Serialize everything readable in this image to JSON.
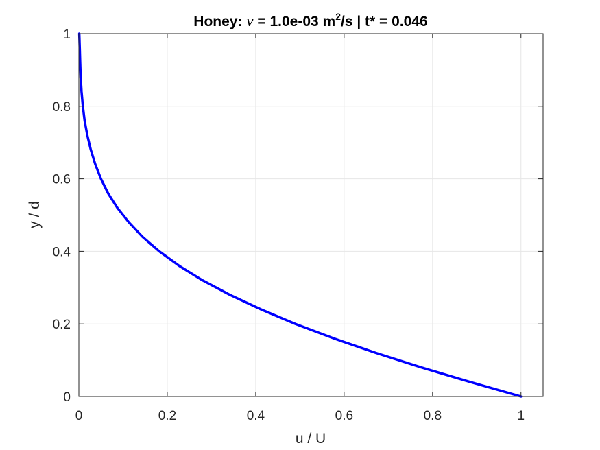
{
  "chart_data": {
    "type": "line",
    "title": {
      "prefix": "Honey: ",
      "symbol": "ν",
      "mid": " = 1.0e-03 m",
      "sup": "2",
      "suffix": "/s | t* = 0.046"
    },
    "xlabel": "u / U",
    "ylabel": "y / d",
    "xlim": [
      0,
      1.05
    ],
    "ylim": [
      0,
      1
    ],
    "xticks": [
      0,
      0.2,
      0.4,
      0.6,
      0.8,
      1
    ],
    "xtick_labels": [
      "0",
      "0.2",
      "0.4",
      "0.6",
      "0.8",
      "1"
    ],
    "yticks": [
      0,
      0.2,
      0.4,
      0.6,
      0.8,
      1
    ],
    "ytick_labels": [
      "0",
      "0.2",
      "0.4",
      "0.6",
      "0.8",
      "1"
    ],
    "grid": true,
    "series": [
      {
        "color": "#0000ff",
        "x": [
          1.0,
          0.885,
          0.775,
          0.672,
          0.577,
          0.49,
          0.412,
          0.342,
          0.28,
          0.227,
          0.182,
          0.144,
          0.113,
          0.087,
          0.066,
          0.05,
          0.037,
          0.027,
          0.019,
          0.013,
          0.009,
          0.006,
          0.004,
          0.003,
          0.002,
          0.001
        ],
        "y": [
          0.0,
          0.04,
          0.08,
          0.12,
          0.16,
          0.2,
          0.24,
          0.28,
          0.32,
          0.36,
          0.4,
          0.44,
          0.48,
          0.52,
          0.56,
          0.6,
          0.64,
          0.68,
          0.72,
          0.76,
          0.8,
          0.84,
          0.88,
          0.92,
          0.96,
          1.0
        ]
      }
    ]
  }
}
